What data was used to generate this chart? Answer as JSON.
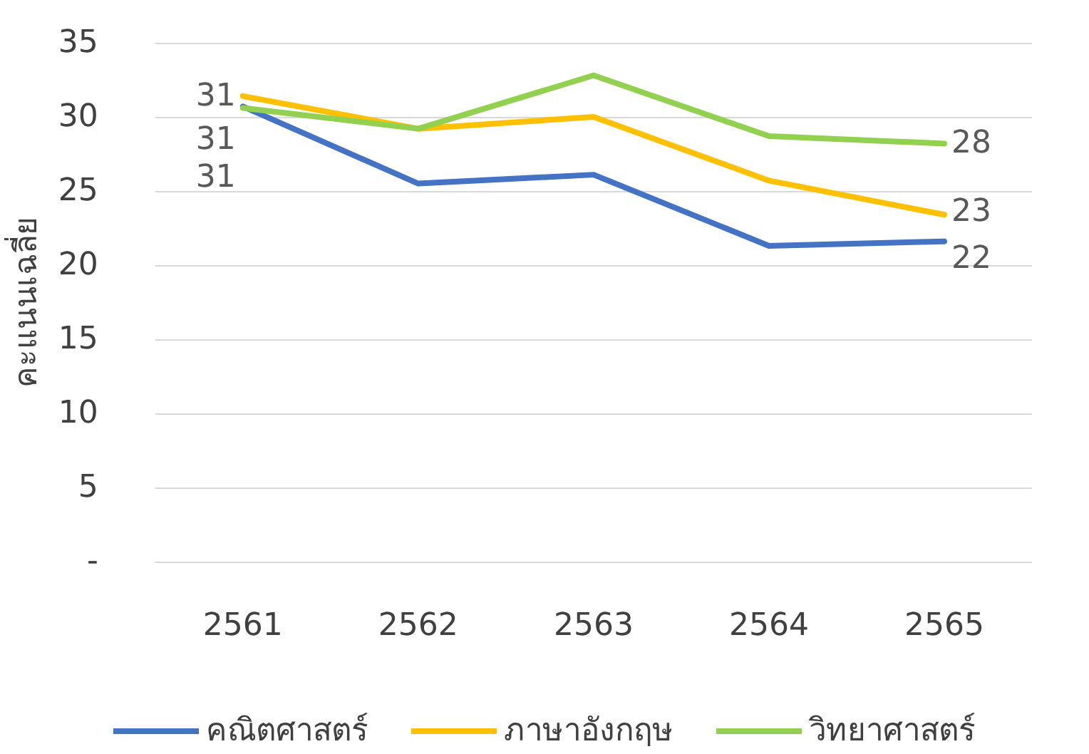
{
  "chart_data": {
    "type": "line",
    "ylabel": "คะแนนเฉลี่ย",
    "categories": [
      "2561",
      "2562",
      "2563",
      "2564",
      "2565"
    ],
    "series": [
      {
        "name": "คณิตศาสตร์",
        "color": "#4472c4",
        "values": [
          30.7,
          25.5,
          26.1,
          21.3,
          21.6
        ],
        "value_labels": [
          "31",
          null,
          null,
          null,
          "22"
        ]
      },
      {
        "name": "ภาษาอังกฤษ",
        "color": "#ffc000",
        "values": [
          31.4,
          29.2,
          30.0,
          25.7,
          23.4
        ],
        "value_labels": [
          "31",
          null,
          null,
          null,
          "23"
        ]
      },
      {
        "name": "วิทยาศาสตร์",
        "color": "#92d050",
        "values": [
          30.6,
          29.2,
          32.8,
          28.7,
          28.2
        ],
        "value_labels": [
          "31",
          null,
          null,
          null,
          "28"
        ]
      }
    ],
    "ylim": [
      0,
      35
    ],
    "yticks": [
      {
        "value": 0,
        "label": "-"
      },
      5,
      10,
      15,
      20,
      25,
      30,
      35
    ],
    "grid": "y",
    "legend": "bottom",
    "marker": "none",
    "line_style": "solid"
  }
}
